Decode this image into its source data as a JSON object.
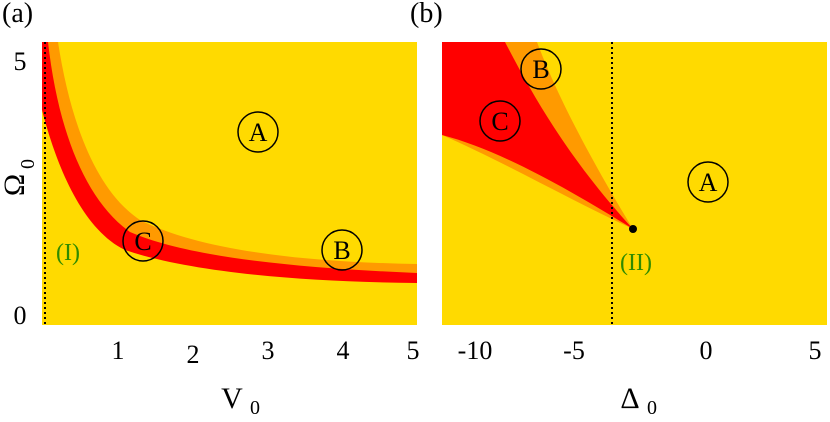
{
  "colors": {
    "background": "#FFDA00",
    "orange": "#FF9A00",
    "red": "#FF0000",
    "region_label_stroke": "#000000",
    "marker_label": "#2E8B00"
  },
  "panel_a": {
    "label": "(a)",
    "xlabel": "V",
    "xlabel_sub": "0",
    "ylabel": "Ω",
    "ylabel_sub": "0",
    "x_ticks": [
      "1",
      "2",
      "3",
      "4",
      "5"
    ],
    "y_ticks": [
      "5",
      "0"
    ],
    "region_A": "A",
    "region_B": "B",
    "region_C": "C",
    "marker_label": "(I)"
  },
  "panel_b": {
    "label": "(b)",
    "xlabel": "Δ",
    "xlabel_sub": "0",
    "x_ticks": [
      "-10",
      "-5",
      "0",
      "5"
    ],
    "region_A": "A",
    "region_B": "B",
    "region_C": "C",
    "marker_label": "(II)"
  }
}
